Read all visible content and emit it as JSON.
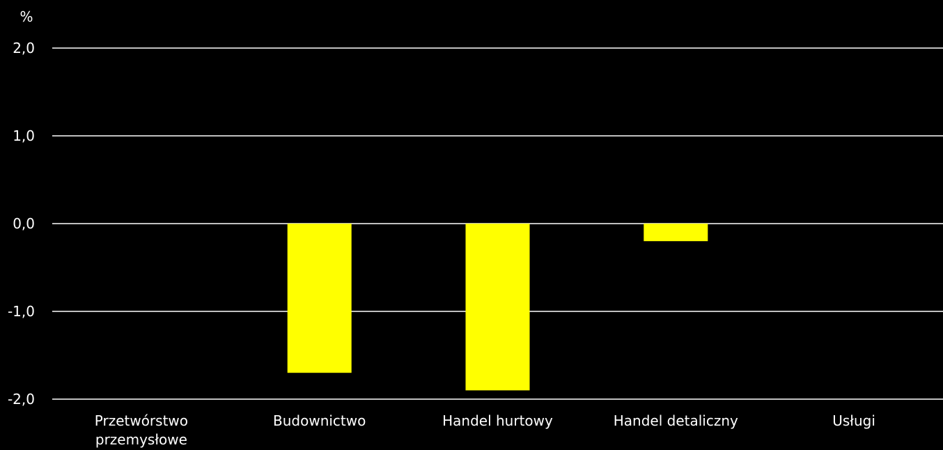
{
  "chart_data": {
    "type": "bar",
    "title": "",
    "ylabel": "%",
    "xlabel": "",
    "categories": [
      "Przetwórstwo przemysłowe",
      "Budownictwo",
      "Handel hurtowy",
      "Handel detaliczny",
      "Usługi"
    ],
    "category_lines": [
      [
        "Przetwórstwo",
        "przemysłowe"
      ],
      [
        "Budownictwo"
      ],
      [
        "Handel hurtowy"
      ],
      [
        "Handel detaliczny"
      ],
      [
        "Usługi"
      ]
    ],
    "values": [
      0.0,
      -1.7,
      -1.9,
      -0.2,
      0.0
    ],
    "ylim": [
      -2.0,
      2.0
    ],
    "yticks": [
      2.0,
      1.0,
      0.0,
      -1.0,
      -2.0
    ],
    "ytick_labels": [
      "2,0",
      "1,0",
      "0,0",
      "-1,0",
      "-2,0"
    ],
    "grid": true,
    "legend": "none",
    "colors": {
      "background": "#000000",
      "bar": "#ffff00",
      "gridline": "#ffffff",
      "text": "#ffffff"
    }
  }
}
